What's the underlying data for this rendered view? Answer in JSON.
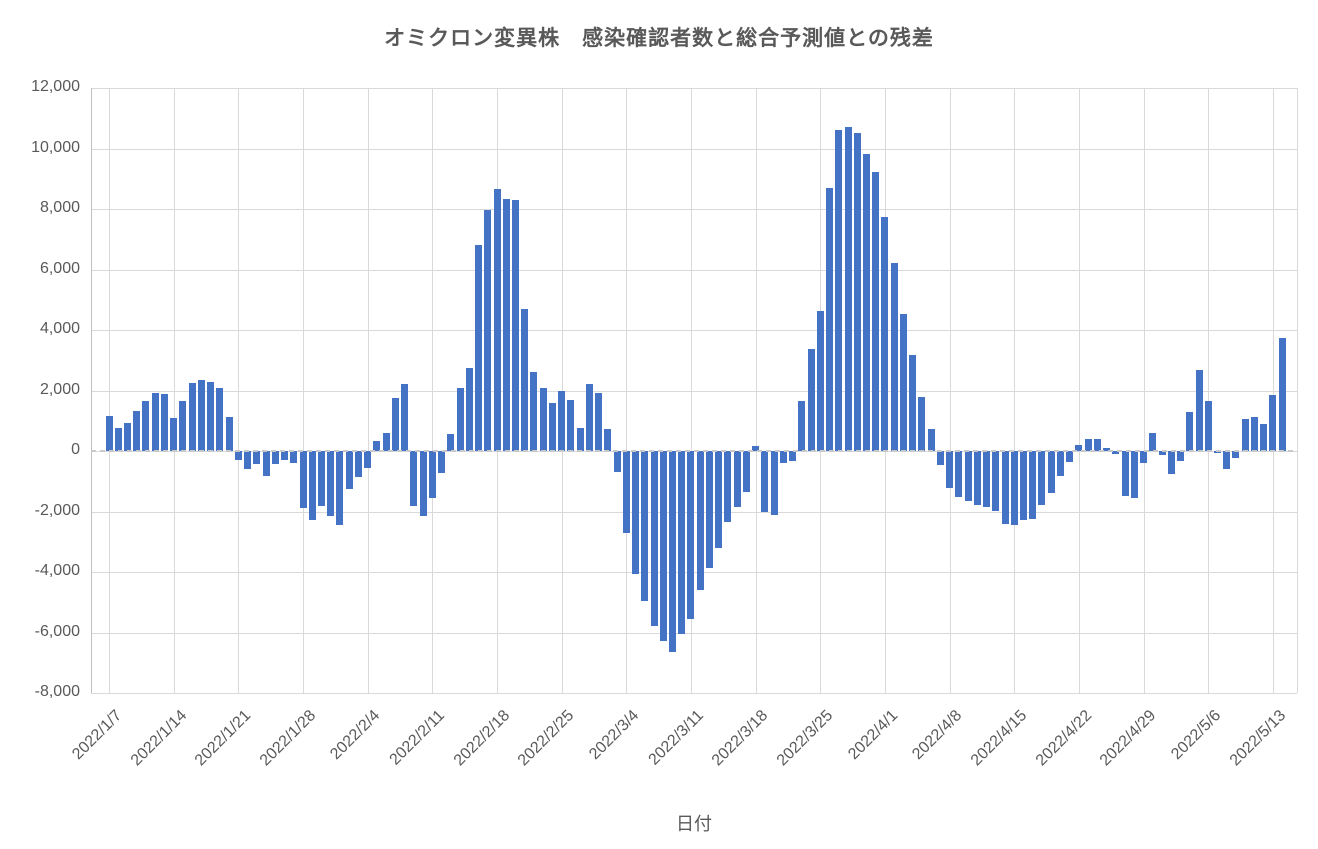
{
  "title": {
    "text": "オミクロン変異株　感染確認者数と総合予測値との残差",
    "color": "#595959"
  },
  "x_axis_title": "日付",
  "colors": {
    "bar": "#4472C4",
    "gridline": "#D9D9D9",
    "axis_line": "#BFBFBF",
    "zero_line_dash": "#C9C9C9",
    "text": "#595959",
    "background": "#FFFFFF"
  },
  "chart_data": {
    "type": "bar",
    "title": "オミクロン変異株　感染確認者数と総合予測値との残差",
    "xlabel": "日付",
    "ylabel": "",
    "ylim": [
      -8000,
      12000
    ],
    "grid": true,
    "legend": "none",
    "zero_line_style": "dashed",
    "y_tick_labels": [
      "12,000",
      "10,000",
      "8,000",
      "6,000",
      "4,000",
      "2,000",
      "0",
      "-2,000",
      "-4,000",
      "-6,000",
      "-8,000"
    ],
    "y_tick_values": [
      12000,
      10000,
      8000,
      6000,
      4000,
      2000,
      0,
      -2000,
      -4000,
      -6000,
      -8000
    ],
    "x_tick_labels": [
      "2022/1/7",
      "2022/1/14",
      "2022/1/21",
      "2022/1/28",
      "2022/2/4",
      "2022/2/11",
      "2022/2/18",
      "2022/2/25",
      "2022/3/4",
      "2022/3/11",
      "2022/3/18",
      "2022/3/25",
      "2022/4/1",
      "2022/4/8",
      "2022/4/15",
      "2022/4/22",
      "2022/4/29",
      "2022/5/6",
      "2022/5/13"
    ],
    "x_tick_every_n_days": 7,
    "categories": [
      "2022/1/7",
      "2022/1/8",
      "2022/1/9",
      "2022/1/10",
      "2022/1/11",
      "2022/1/12",
      "2022/1/13",
      "2022/1/14",
      "2022/1/15",
      "2022/1/16",
      "2022/1/17",
      "2022/1/18",
      "2022/1/19",
      "2022/1/20",
      "2022/1/21",
      "2022/1/22",
      "2022/1/23",
      "2022/1/24",
      "2022/1/25",
      "2022/1/26",
      "2022/1/27",
      "2022/1/28",
      "2022/1/29",
      "2022/1/30",
      "2022/1/31",
      "2022/2/1",
      "2022/2/2",
      "2022/2/3",
      "2022/2/4",
      "2022/2/5",
      "2022/2/6",
      "2022/2/7",
      "2022/2/8",
      "2022/2/9",
      "2022/2/10",
      "2022/2/11",
      "2022/2/12",
      "2022/2/13",
      "2022/2/14",
      "2022/2/15",
      "2022/2/16",
      "2022/2/17",
      "2022/2/18",
      "2022/2/19",
      "2022/2/20",
      "2022/2/21",
      "2022/2/22",
      "2022/2/23",
      "2022/2/24",
      "2022/2/25",
      "2022/2/26",
      "2022/2/27",
      "2022/2/28",
      "2022/3/1",
      "2022/3/2",
      "2022/3/3",
      "2022/3/4",
      "2022/3/5",
      "2022/3/6",
      "2022/3/7",
      "2022/3/8",
      "2022/3/9",
      "2022/3/10",
      "2022/3/11",
      "2022/3/12",
      "2022/3/13",
      "2022/3/14",
      "2022/3/15",
      "2022/3/16",
      "2022/3/17",
      "2022/3/18",
      "2022/3/19",
      "2022/3/20",
      "2022/3/21",
      "2022/3/22",
      "2022/3/23",
      "2022/3/24",
      "2022/3/25",
      "2022/3/26",
      "2022/3/27",
      "2022/3/28",
      "2022/3/29",
      "2022/3/30",
      "2022/3/31",
      "2022/4/1",
      "2022/4/2",
      "2022/4/3",
      "2022/4/4",
      "2022/4/5",
      "2022/4/6",
      "2022/4/7",
      "2022/4/8",
      "2022/4/9",
      "2022/4/10",
      "2022/4/11",
      "2022/4/12",
      "2022/4/13",
      "2022/4/14",
      "2022/4/15",
      "2022/4/16",
      "2022/4/17",
      "2022/4/18",
      "2022/4/19",
      "2022/4/20",
      "2022/4/21",
      "2022/4/22",
      "2022/4/23",
      "2022/4/24",
      "2022/4/25",
      "2022/4/26",
      "2022/4/27",
      "2022/4/28",
      "2022/4/29",
      "2022/4/30",
      "2022/5/1",
      "2022/5/2",
      "2022/5/3",
      "2022/5/4",
      "2022/5/5",
      "2022/5/6",
      "2022/5/7",
      "2022/5/8",
      "2022/5/9",
      "2022/5/10",
      "2022/5/11",
      "2022/5/12",
      "2022/5/13",
      "2022/5/14"
    ],
    "values": [
      1150,
      750,
      930,
      1330,
      1660,
      1930,
      1900,
      1080,
      1640,
      2250,
      2350,
      2290,
      2080,
      1130,
      -310,
      -590,
      -420,
      -830,
      -440,
      -310,
      -390,
      -1880,
      -2270,
      -1830,
      -2140,
      -2460,
      -1270,
      -850,
      -550,
      330,
      610,
      1770,
      2215,
      -1830,
      -2160,
      -1550,
      -720,
      550,
      2100,
      2750,
      6820,
      7970,
      8650,
      8320,
      8300,
      4700,
      2600,
      2070,
      1600,
      1990,
      1690,
      750,
      2200,
      1920,
      720,
      -700,
      -2700,
      -4050,
      -4950,
      -5800,
      -6270,
      -6650,
      -6050,
      -5540,
      -4600,
      -3880,
      -3200,
      -2360,
      -1850,
      -1360,
      170,
      -2010,
      -2130,
      -400,
      -330,
      1640,
      3370,
      4630,
      8700,
      10620,
      10700,
      10510,
      9820,
      9210,
      7750,
      6220,
      4540,
      3160,
      1790,
      720,
      -460,
      -1220,
      -1530,
      -1640,
      -1770,
      -1860,
      -1970,
      -2410,
      -2460,
      -2270,
      -2250,
      -1800,
      -1380,
      -830,
      -370,
      200,
      390,
      390,
      110,
      -110,
      -1500,
      -1550,
      -390,
      610,
      -140,
      -775,
      -330,
      1300,
      2690,
      1650,
      -80,
      -590,
      -220,
      1050,
      1140,
      900,
      1860,
      3750
    ]
  }
}
